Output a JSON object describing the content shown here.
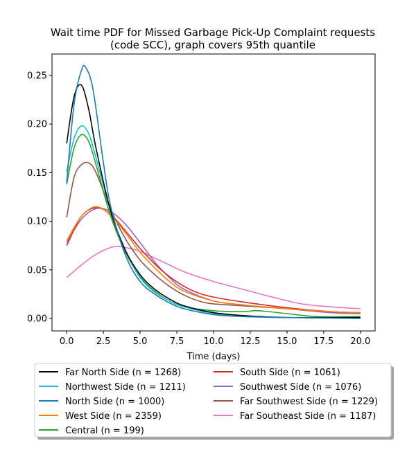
{
  "chart_data": {
    "type": "line",
    "title_line1": "Wait time PDF for Missed Garbage Pick-Up Complaint  requests",
    "title_line2": "(code SCC), graph covers 95th quantile",
    "xlabel": "Time (days)",
    "ylabel": "",
    "xlim": [
      -1.0,
      21.0
    ],
    "ylim": [
      -0.0128,
      0.272
    ],
    "x_ticks": [
      0.0,
      2.5,
      5.0,
      7.5,
      10.0,
      12.5,
      15.0,
      17.5,
      20.0
    ],
    "x_tick_labels": [
      "0.0",
      "2.5",
      "5.0",
      "7.5",
      "10.0",
      "12.5",
      "15.0",
      "17.5",
      "20.0"
    ],
    "y_ticks": [
      0.0,
      0.05,
      0.1,
      0.15,
      0.2,
      0.25
    ],
    "y_tick_labels": [
      "0.00",
      "0.05",
      "0.10",
      "0.15",
      "0.20",
      "0.25"
    ],
    "grid": false,
    "legend_placement": "below plot, two columns",
    "series": [
      {
        "name": "Far North Side (n = 1268)",
        "color": "#000000",
        "x": [
          0,
          0.5,
          1,
          1.5,
          2,
          3,
          4,
          5,
          6,
          7,
          8,
          10,
          12,
          15,
          20
        ],
        "y": [
          0.18,
          0.228,
          0.24,
          0.215,
          0.175,
          0.11,
          0.07,
          0.045,
          0.03,
          0.02,
          0.013,
          0.006,
          0.003,
          0.001,
          0.001
        ]
      },
      {
        "name": "Northwest Side (n = 1211)",
        "color": "#17becf",
        "x": [
          0,
          0.5,
          1,
          1.5,
          2,
          3,
          4,
          5,
          6,
          7,
          8,
          10,
          12,
          15,
          20
        ],
        "y": [
          0.151,
          0.185,
          0.198,
          0.19,
          0.165,
          0.11,
          0.07,
          0.042,
          0.027,
          0.018,
          0.012,
          0.005,
          0.002,
          0.001,
          0.001
        ]
      },
      {
        "name": "North Side (n = 1000)",
        "color": "#1f77b4",
        "x": [
          0,
          0.5,
          1,
          1.3,
          1.8,
          2.5,
          3,
          4,
          5,
          6,
          7,
          8,
          10,
          12,
          15,
          20
        ],
        "y": [
          0.14,
          0.22,
          0.255,
          0.258,
          0.235,
          0.16,
          0.115,
          0.065,
          0.038,
          0.025,
          0.016,
          0.01,
          0.004,
          0.002,
          0.001,
          0.0
        ]
      },
      {
        "name": "West Side (n = 2359)",
        "color": "#ff7f0e",
        "x": [
          0,
          1,
          2,
          3,
          4,
          5,
          6,
          7,
          8,
          10,
          12,
          15,
          18,
          20
        ],
        "y": [
          0.08,
          0.105,
          0.115,
          0.106,
          0.088,
          0.068,
          0.052,
          0.038,
          0.028,
          0.018,
          0.014,
          0.01,
          0.007,
          0.006
        ]
      },
      {
        "name": "Central (n = 199)",
        "color": "#2ca02c",
        "x": [
          0,
          0.5,
          1,
          1.5,
          2,
          3,
          4,
          5,
          6,
          7,
          8,
          10,
          12,
          13,
          15,
          17,
          20
        ],
        "y": [
          0.138,
          0.175,
          0.189,
          0.182,
          0.158,
          0.105,
          0.068,
          0.043,
          0.028,
          0.018,
          0.012,
          0.008,
          0.007,
          0.008,
          0.005,
          0.002,
          0.002
        ]
      },
      {
        "name": "South Side (n = 1061)",
        "color": "#d62728",
        "x": [
          0,
          1,
          2,
          3,
          4,
          5,
          6,
          7,
          8,
          9,
          10,
          12,
          15,
          18,
          20
        ],
        "y": [
          0.075,
          0.105,
          0.114,
          0.107,
          0.09,
          0.072,
          0.056,
          0.043,
          0.033,
          0.026,
          0.022,
          0.017,
          0.011,
          0.007,
          0.006
        ]
      },
      {
        "name": "Southwest Side (n = 1076)",
        "color": "#9467bd",
        "x": [
          0,
          1,
          2,
          3,
          4,
          5,
          6,
          7,
          8,
          10,
          12,
          15,
          18,
          20
        ],
        "y": [
          0.078,
          0.102,
          0.113,
          0.11,
          0.097,
          0.078,
          0.058,
          0.042,
          0.03,
          0.018,
          0.014,
          0.01,
          0.006,
          0.005
        ]
      },
      {
        "name": "Far Southwest Side (n = 1229)",
        "color": "#8c564b",
        "x": [
          0,
          0.5,
          1,
          1.5,
          2,
          3,
          4,
          5,
          6,
          7,
          8,
          9,
          10,
          12,
          15,
          18,
          20
        ],
        "y": [
          0.104,
          0.145,
          0.158,
          0.16,
          0.15,
          0.112,
          0.082,
          0.06,
          0.045,
          0.033,
          0.024,
          0.018,
          0.015,
          0.013,
          0.01,
          0.006,
          0.005
        ]
      },
      {
        "name": "Far Southeast Side (n = 1187)",
        "color": "#e377c2",
        "x": [
          0,
          1,
          2,
          3,
          3.5,
          4,
          5,
          6,
          7,
          8,
          10,
          12,
          14,
          16,
          18,
          20
        ],
        "y": [
          0.042,
          0.055,
          0.066,
          0.073,
          0.074,
          0.073,
          0.069,
          0.062,
          0.055,
          0.048,
          0.038,
          0.03,
          0.022,
          0.015,
          0.012,
          0.01
        ]
      }
    ]
  }
}
